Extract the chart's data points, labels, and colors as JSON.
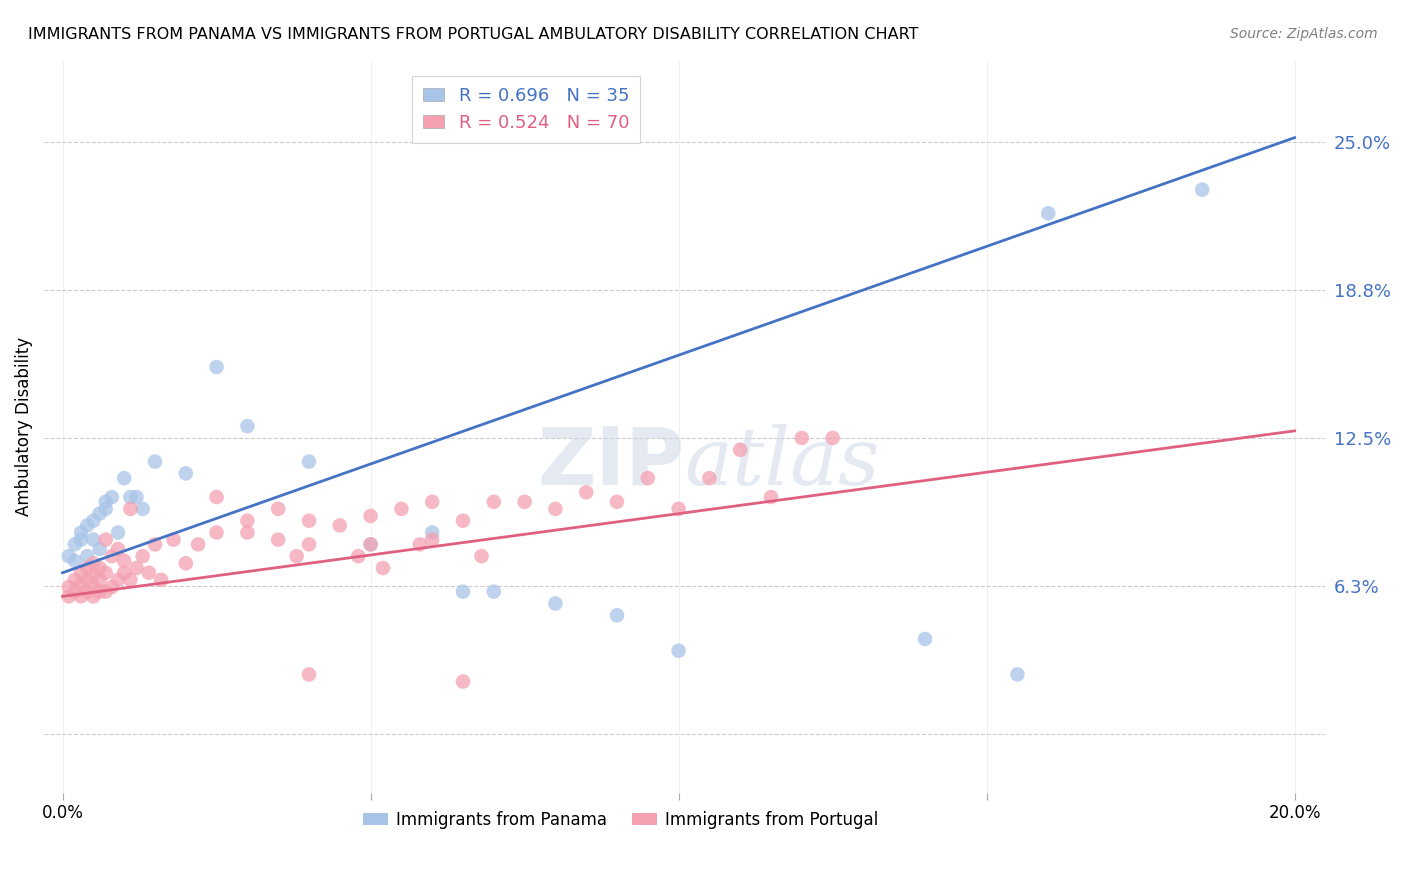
{
  "title": "IMMIGRANTS FROM PANAMA VS IMMIGRANTS FROM PORTUGAL AMBULATORY DISABILITY CORRELATION CHART",
  "source": "Source: ZipAtlas.com",
  "ylabel": "Ambulatory Disability",
  "panama_R": 0.696,
  "panama_N": 35,
  "portugal_R": 0.524,
  "portugal_N": 70,
  "panama_color": "#a8c4e8",
  "portugal_color": "#f4a0b0",
  "panama_line_color": "#4472c4",
  "portugal_line_color": "#e06080",
  "background_color": "#ffffff",
  "grid_color": "#cccccc",
  "ytick_vals": [
    0.0,
    0.0625,
    0.125,
    0.1875,
    0.25
  ],
  "ytick_labels": [
    "",
    "6.3%",
    "12.5%",
    "18.8%",
    "25.0%"
  ],
  "xtick_positions": [
    0.0,
    0.05,
    0.1,
    0.15,
    0.2
  ],
  "xtick_labels": [
    "0.0%",
    "",
    "",
    "",
    "20.0%"
  ],
  "xlim": [
    -0.003,
    0.205
  ],
  "ylim": [
    -0.025,
    0.285
  ],
  "panama_line_x0": 0.0,
  "panama_line_y0": 0.068,
  "panama_line_x1": 0.2,
  "panama_line_y1": 0.252,
  "portugal_line_x0": 0.0,
  "portugal_line_y0": 0.058,
  "portugal_line_x1": 0.2,
  "portugal_line_y1": 0.128,
  "panama_points": [
    [
      0.001,
      0.075
    ],
    [
      0.002,
      0.08
    ],
    [
      0.002,
      0.073
    ],
    [
      0.003,
      0.082
    ],
    [
      0.003,
      0.085
    ],
    [
      0.004,
      0.088
    ],
    [
      0.004,
      0.075
    ],
    [
      0.005,
      0.09
    ],
    [
      0.005,
      0.082
    ],
    [
      0.006,
      0.093
    ],
    [
      0.006,
      0.078
    ],
    [
      0.007,
      0.095
    ],
    [
      0.007,
      0.098
    ],
    [
      0.008,
      0.1
    ],
    [
      0.009,
      0.085
    ],
    [
      0.01,
      0.108
    ],
    [
      0.011,
      0.1
    ],
    [
      0.012,
      0.1
    ],
    [
      0.013,
      0.095
    ],
    [
      0.015,
      0.115
    ],
    [
      0.02,
      0.11
    ],
    [
      0.025,
      0.155
    ],
    [
      0.03,
      0.13
    ],
    [
      0.04,
      0.115
    ],
    [
      0.05,
      0.08
    ],
    [
      0.06,
      0.085
    ],
    [
      0.065,
      0.06
    ],
    [
      0.07,
      0.06
    ],
    [
      0.08,
      0.055
    ],
    [
      0.09,
      0.05
    ],
    [
      0.1,
      0.035
    ],
    [
      0.14,
      0.04
    ],
    [
      0.155,
      0.025
    ],
    [
      0.16,
      0.22
    ],
    [
      0.185,
      0.23
    ]
  ],
  "portugal_points": [
    [
      0.001,
      0.058
    ],
    [
      0.001,
      0.062
    ],
    [
      0.002,
      0.06
    ],
    [
      0.002,
      0.065
    ],
    [
      0.003,
      0.058
    ],
    [
      0.003,
      0.063
    ],
    [
      0.003,
      0.068
    ],
    [
      0.004,
      0.06
    ],
    [
      0.004,
      0.065
    ],
    [
      0.004,
      0.07
    ],
    [
      0.005,
      0.058
    ],
    [
      0.005,
      0.062
    ],
    [
      0.005,
      0.067
    ],
    [
      0.005,
      0.072
    ],
    [
      0.006,
      0.06
    ],
    [
      0.006,
      0.065
    ],
    [
      0.006,
      0.07
    ],
    [
      0.007,
      0.06
    ],
    [
      0.007,
      0.068
    ],
    [
      0.007,
      0.082
    ],
    [
      0.008,
      0.062
    ],
    [
      0.008,
      0.075
    ],
    [
      0.009,
      0.065
    ],
    [
      0.009,
      0.078
    ],
    [
      0.01,
      0.068
    ],
    [
      0.01,
      0.073
    ],
    [
      0.011,
      0.065
    ],
    [
      0.011,
      0.095
    ],
    [
      0.012,
      0.07
    ],
    [
      0.013,
      0.075
    ],
    [
      0.014,
      0.068
    ],
    [
      0.015,
      0.08
    ],
    [
      0.016,
      0.065
    ],
    [
      0.018,
      0.082
    ],
    [
      0.02,
      0.072
    ],
    [
      0.022,
      0.08
    ],
    [
      0.025,
      0.085
    ],
    [
      0.025,
      0.1
    ],
    [
      0.03,
      0.085
    ],
    [
      0.03,
      0.09
    ],
    [
      0.035,
      0.082
    ],
    [
      0.035,
      0.095
    ],
    [
      0.038,
      0.075
    ],
    [
      0.04,
      0.09
    ],
    [
      0.04,
      0.08
    ],
    [
      0.045,
      0.088
    ],
    [
      0.048,
      0.075
    ],
    [
      0.05,
      0.092
    ],
    [
      0.05,
      0.08
    ],
    [
      0.052,
      0.07
    ],
    [
      0.055,
      0.095
    ],
    [
      0.058,
      0.08
    ],
    [
      0.06,
      0.098
    ],
    [
      0.06,
      0.082
    ],
    [
      0.065,
      0.09
    ],
    [
      0.068,
      0.075
    ],
    [
      0.07,
      0.098
    ],
    [
      0.075,
      0.098
    ],
    [
      0.08,
      0.095
    ],
    [
      0.085,
      0.102
    ],
    [
      0.09,
      0.098
    ],
    [
      0.095,
      0.108
    ],
    [
      0.1,
      0.095
    ],
    [
      0.105,
      0.108
    ],
    [
      0.11,
      0.12
    ],
    [
      0.115,
      0.1
    ],
    [
      0.12,
      0.125
    ],
    [
      0.125,
      0.125
    ],
    [
      0.04,
      0.025
    ],
    [
      0.065,
      0.022
    ]
  ]
}
